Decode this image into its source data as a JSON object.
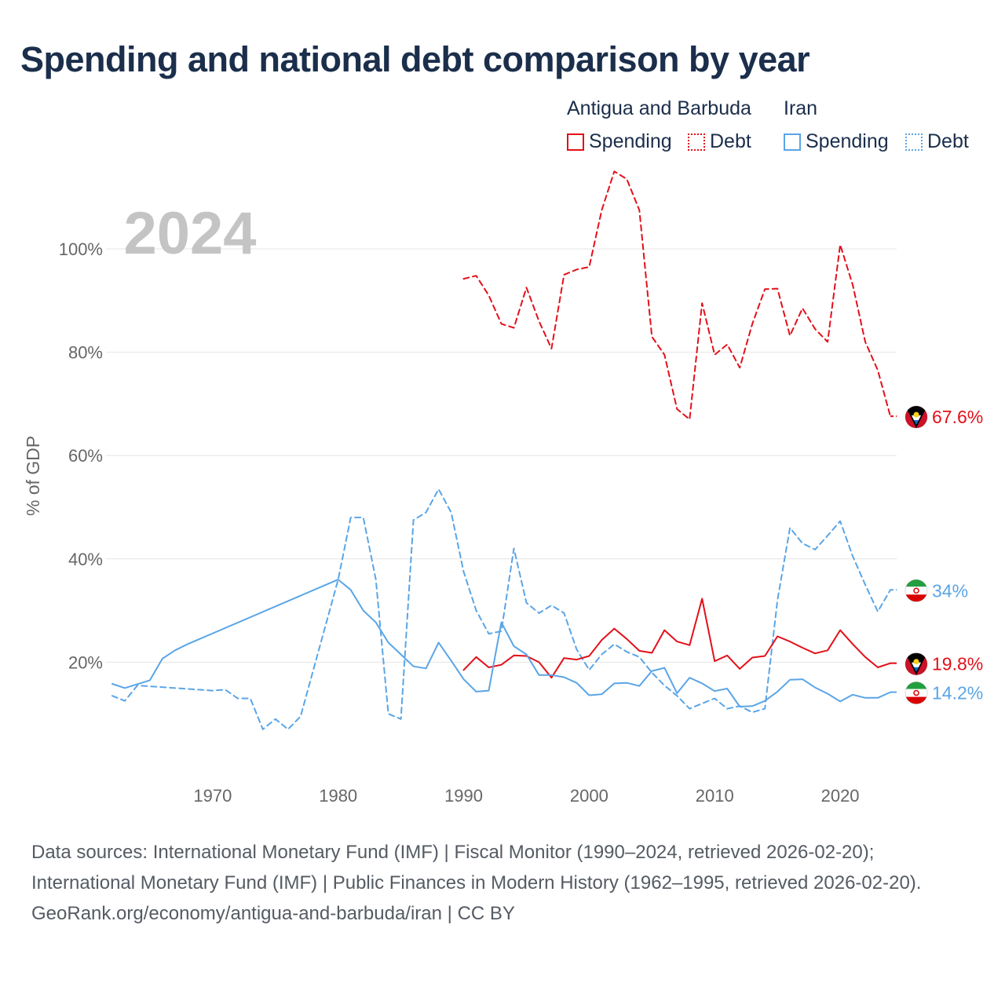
{
  "title": "Spending and national debt comparison by year",
  "legend": {
    "groups": [
      {
        "country": "Antigua and Barbuda",
        "spending": "Spending",
        "debt": "Debt",
        "color": "#e3101a"
      },
      {
        "country": "Iran",
        "spending": "Spending",
        "debt": "Debt",
        "color": "#5aa5e6"
      }
    ]
  },
  "year_watermark": "2024",
  "footer": {
    "sources": "Data sources: International Monetary Fund (IMF) | Fiscal Monitor (1990–2024, retrieved 2026-02-20); International Monetary Fund (IMF) | Public Finances in Modern History (1962–1995, retrieved 2026-02-20).",
    "attribution": "GeoRank.org/economy/antigua-and-barbuda/iran | CC BY"
  },
  "chart_data": {
    "type": "line",
    "title": "Spending and national debt comparison by year",
    "xlabel": "",
    "ylabel": "% of GDP",
    "xlim": [
      1961.5,
      2024.5
    ],
    "ylim": [
      0,
      112
    ],
    "x_ticks": [
      1970,
      1980,
      1990,
      2000,
      2010,
      2020
    ],
    "y_ticks": [
      20,
      40,
      60,
      80,
      100
    ],
    "y_tick_labels": [
      "20%",
      "40%",
      "60%",
      "80%",
      "100%"
    ],
    "grid": true,
    "series": [
      {
        "name": "Antigua and Barbuda Debt",
        "color": "#e3101a",
        "style": "dashed",
        "end_label": "67.6%",
        "flag": "antigua",
        "x": [
          1990,
          1991,
          1992,
          1993,
          1994,
          1995,
          1996,
          1997,
          1998,
          1999,
          2000,
          2001,
          2002,
          2003,
          2004,
          2005,
          2006,
          2007,
          2008,
          2009,
          2010,
          2011,
          2012,
          2013,
          2014,
          2015,
          2016,
          2017,
          2018,
          2019,
          2020,
          2021,
          2022,
          2023,
          2024
        ],
        "y": [
          94.2,
          94.8,
          91,
          85.5,
          84.7,
          92.5,
          86,
          80.7,
          95,
          96,
          96.5,
          107.5,
          115,
          113.5,
          107.5,
          83,
          79.5,
          69,
          67,
          89.5,
          79.5,
          81.5,
          77,
          85.5,
          92.2,
          92.3,
          83.2,
          88.5,
          84.5,
          82,
          100.8,
          93,
          82,
          76.5,
          67.6
        ]
      },
      {
        "name": "Iran Debt",
        "color": "#5aa5e6",
        "style": "dashed",
        "end_label": "34%",
        "flag": "iran",
        "x": [
          1962,
          1963,
          1964,
          1970,
          1971,
          1972,
          1973,
          1974,
          1975,
          1976,
          1977,
          1980,
          1981,
          1982,
          1983,
          1984,
          1985,
          1986,
          1987,
          1988,
          1989,
          1990,
          1991,
          1992,
          1993,
          1994,
          1995,
          1996,
          1997,
          1998,
          1999,
          2000,
          2001,
          2002,
          2003,
          2004,
          2005,
          2006,
          2007,
          2008,
          2009,
          2010,
          2011,
          2012,
          2013,
          2014,
          2015,
          2016,
          2017,
          2018,
          2019,
          2020,
          2021,
          2022,
          2023,
          2024
        ],
        "y": [
          13.5,
          12.5,
          15.5,
          14.5,
          14.7,
          13,
          13,
          7,
          9,
          7,
          9.5,
          36,
          48,
          48,
          36,
          10,
          9,
          47.5,
          49,
          53.5,
          49,
          37.5,
          30,
          25.5,
          26,
          42,
          31.5,
          29.5,
          31,
          29.5,
          22.5,
          18.5,
          21.5,
          23.5,
          22,
          21,
          18,
          15.5,
          13.5,
          11,
          12,
          13,
          11,
          11.5,
          10.3,
          11,
          32,
          46,
          43,
          41.8,
          44.5,
          47.3,
          40.5,
          35,
          29.8,
          34
        ]
      },
      {
        "name": "Antigua and Barbuda Spending",
        "color": "#e3101a",
        "style": "solid",
        "end_label": "19.8%",
        "flag": "antigua",
        "x": [
          1990,
          1991,
          1992,
          1993,
          1994,
          1995,
          1996,
          1997,
          1998,
          1999,
          2000,
          2001,
          2002,
          2003,
          2004,
          2005,
          2006,
          2007,
          2008,
          2009,
          2010,
          2011,
          2012,
          2013,
          2014,
          2015,
          2016,
          2017,
          2018,
          2019,
          2020,
          2021,
          2022,
          2023,
          2024
        ],
        "y": [
          18.5,
          21,
          19,
          19.5,
          21.3,
          21.2,
          20,
          17,
          20.8,
          20.5,
          21.2,
          24.3,
          26.5,
          24.5,
          22.2,
          21.8,
          26.2,
          24,
          23.3,
          32.3,
          20.2,
          21.3,
          18.7,
          20.9,
          21.2,
          25,
          24,
          22.8,
          21.7,
          22.3,
          26.2,
          23.5,
          21,
          19,
          19.8
        ]
      },
      {
        "name": "Iran Spending",
        "color": "#5aa5e6",
        "style": "solid",
        "end_label": "14.2%",
        "flag": "iran",
        "x": [
          1962,
          1963,
          1965,
          1966,
          1967,
          1968,
          1980,
          1981,
          1982,
          1983,
          1984,
          1985,
          1986,
          1987,
          1988,
          1989,
          1990,
          1991,
          1992,
          1993,
          1994,
          1995,
          1996,
          1997,
          1998,
          1999,
          2000,
          2001,
          2002,
          2003,
          2004,
          2005,
          2006,
          2007,
          2008,
          2009,
          2010,
          2011,
          2012,
          2013,
          2014,
          2015,
          2016,
          2017,
          2018,
          2019,
          2020,
          2021,
          2022,
          2023,
          2024
        ],
        "y": [
          15.8,
          15,
          16.5,
          20.7,
          22.3,
          23.5,
          36,
          34,
          30,
          27.7,
          23.8,
          21.5,
          19.2,
          18.8,
          23.8,
          20.3,
          16.7,
          14.3,
          14.5,
          27.7,
          23.1,
          21.5,
          17.5,
          17.5,
          17.1,
          16,
          13.6,
          13.8,
          15.9,
          16,
          15.4,
          18.3,
          18.9,
          14,
          17,
          15.9,
          14.4,
          14.9,
          11.4,
          11.5,
          12.5,
          14.3,
          16.6,
          16.7,
          15.1,
          13.9,
          12.4,
          13.7,
          13.1,
          13.1,
          14.2
        ]
      }
    ]
  }
}
